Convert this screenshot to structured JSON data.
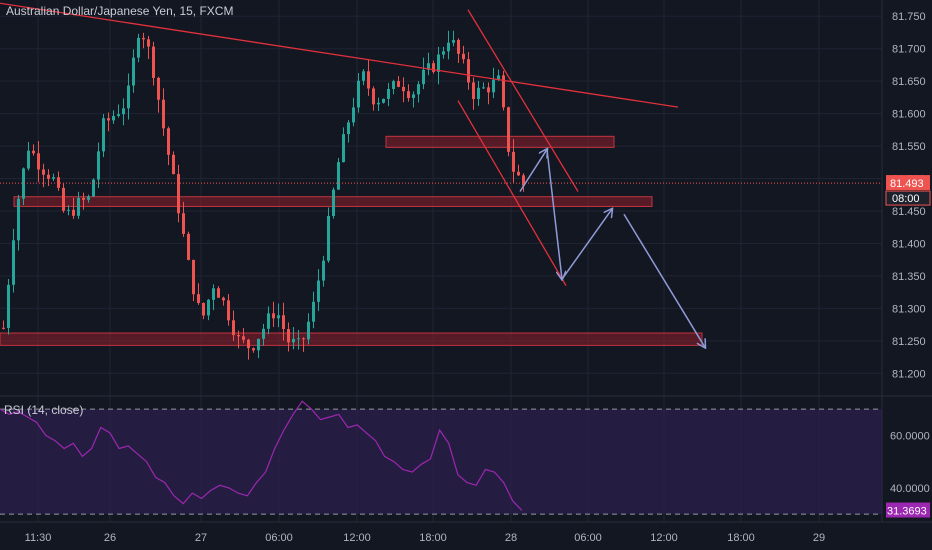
{
  "title": "Australian Dollar/Japanese Yen, 15, FXCM",
  "rsi_label": "RSI (14, close)",
  "colors": {
    "background": "#131722",
    "up": "#26a69a",
    "down": "#ef5350",
    "trendline": "#e0313c",
    "zone": "#8e1f2b",
    "arrow": "#8f9bd6",
    "rsi_line": "#9c27b0",
    "rsi_band": "#2a1f4a"
  },
  "chart_data": [
    {
      "type": "candlestick",
      "title": "Australian Dollar/Japanese Yen, 15, FXCM",
      "ylim": [
        81.165,
        81.775
      ],
      "y_ticks": [
        "81.750",
        "81.700",
        "81.650",
        "81.600",
        "81.550",
        "81.500",
        "81.450",
        "81.400",
        "81.350",
        "81.300",
        "81.250",
        "81.200"
      ],
      "x_ticks": [
        "11:30",
        "26",
        "27",
        "06:00",
        "12:00",
        "18:00",
        "28",
        "06:00",
        "12:00",
        "18:00",
        "29"
      ],
      "last_price": "81.493",
      "countdown": "08:00",
      "price_path": [
        81.27,
        81.45,
        81.55,
        81.52,
        81.5,
        81.44,
        81.46,
        81.47,
        81.58,
        81.6,
        81.62,
        81.74,
        81.68,
        81.57,
        81.47,
        81.36,
        81.28,
        81.34,
        81.3,
        81.25,
        81.24,
        81.27,
        81.3,
        81.25,
        81.24,
        81.3,
        81.4,
        81.52,
        81.6,
        81.66,
        81.62,
        81.63,
        81.65,
        81.63,
        81.66,
        81.68,
        81.72,
        81.68,
        81.63,
        81.64,
        81.65,
        81.52,
        81.49
      ]
    },
    {
      "type": "line",
      "title": "RSI (14, close)",
      "ylim": [
        27,
        75
      ],
      "y_ticks": [
        "60.0000",
        "40.0000"
      ],
      "last_value": "31.3693",
      "bands": [
        70,
        30
      ],
      "values": [
        70,
        68,
        69,
        67,
        65,
        60,
        58,
        55,
        57,
        52,
        55,
        63,
        61,
        55,
        56,
        53,
        50,
        44,
        42,
        37,
        34,
        38,
        36,
        39,
        41,
        40,
        38,
        37,
        42,
        46,
        55,
        62,
        68,
        73,
        70,
        66,
        67,
        68,
        63,
        64,
        61,
        58,
        52,
        50,
        47,
        46,
        49,
        51,
        62,
        57,
        45,
        42,
        41,
        47,
        46,
        42,
        35,
        31.37
      ]
    }
  ],
  "annotations": {
    "resistance_trendline": {
      "from": [
        0,
        81.77
      ],
      "to": [
        678,
        81.61
      ]
    },
    "channel_upper": {
      "from": [
        468,
        81.76
      ],
      "to": [
        578,
        81.48
      ]
    },
    "channel_lower": {
      "from": [
        458,
        81.62
      ],
      "to": [
        566,
        81.335
      ]
    },
    "zones": [
      {
        "x1": 386,
        "x2": 614,
        "y_top": 81.565,
        "y_bot": 81.548
      },
      {
        "x1": 14,
        "x2": 652,
        "y_top": 81.472,
        "y_bot": 81.457
      },
      {
        "x1": 0,
        "x2": 702,
        "y_top": 81.262,
        "y_bot": 81.243
      }
    ],
    "projection": [
      [
        520,
        81.48
      ],
      [
        547,
        81.545
      ],
      [
        562,
        81.345
      ],
      [
        612,
        81.453
      ],
      [
        624,
        81.445
      ],
      [
        705,
        81.24
      ]
    ]
  }
}
